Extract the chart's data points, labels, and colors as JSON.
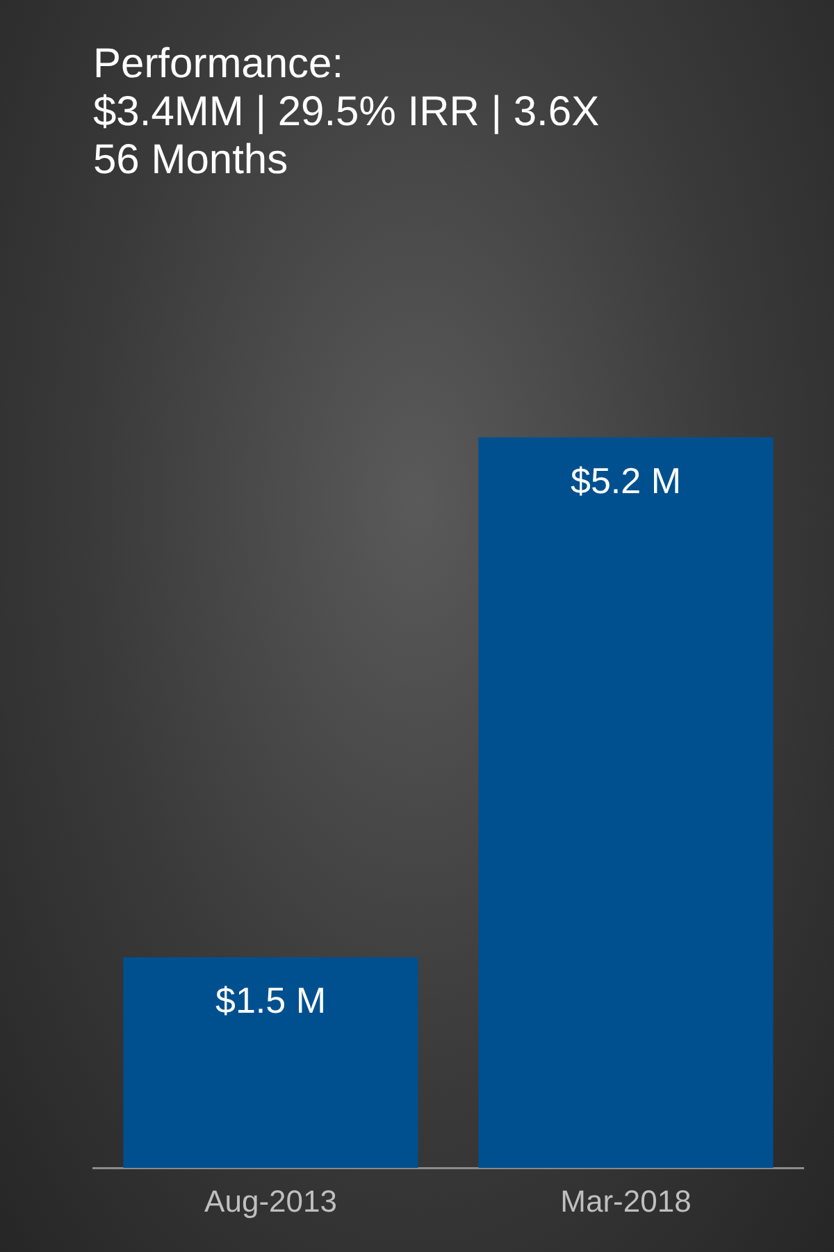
{
  "chart_data": {
    "type": "bar",
    "title": "Performance:\n$3.4MM | 29.5% IRR | 3.6X\n56 Months",
    "categories": [
      "Aug-2013",
      "Mar-2018"
    ],
    "values": [
      1.5,
      5.2
    ],
    "value_labels": [
      "$1.5 M",
      "$5.2 M"
    ],
    "color": "#00508f",
    "grid": false,
    "legend": false
  }
}
